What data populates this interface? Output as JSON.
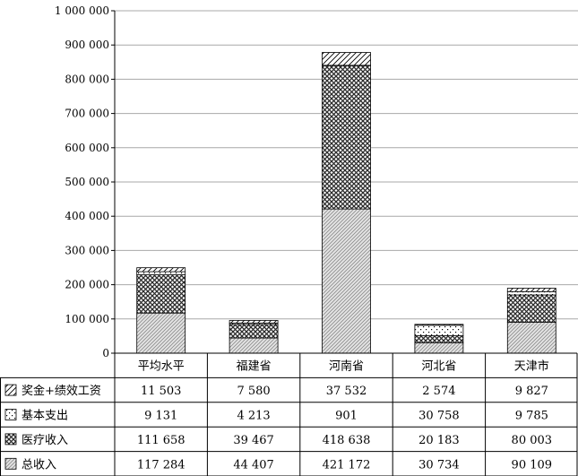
{
  "chart_data": {
    "type": "bar",
    "stacked": true,
    "categories": [
      "平均水平",
      "福建省",
      "河南省",
      "河北省",
      "天津市"
    ],
    "series": [
      {
        "name": "总收入",
        "pattern": "diag-fine",
        "values": [
          117284,
          44407,
          421172,
          30734,
          90109
        ]
      },
      {
        "name": "医疗收入",
        "pattern": "crosshatch",
        "values": [
          111658,
          39467,
          418638,
          20183,
          80003
        ]
      },
      {
        "name": "基本支出",
        "pattern": "dots",
        "values": [
          9131,
          4213,
          901,
          30758,
          9785
        ]
      },
      {
        "name": "奖金+绩效工资",
        "pattern": "diag-coarse",
        "values": [
          11503,
          7580,
          37532,
          2574,
          9827
        ]
      }
    ],
    "table_rows": [
      {
        "series_index": 3,
        "label": "奖金+绩效工资",
        "cells": [
          "11 503",
          "7 580",
          "37 532",
          "2 574",
          "9 827"
        ]
      },
      {
        "series_index": 2,
        "label": "基本支出",
        "cells": [
          "9 131",
          "4 213",
          "901",
          "30 758",
          "9 785"
        ]
      },
      {
        "series_index": 1,
        "label": "医疗收入",
        "cells": [
          "111 658",
          "39 467",
          "418 638",
          "20 183",
          "80 003"
        ]
      },
      {
        "series_index": 0,
        "label": "总收入",
        "cells": [
          "117 284",
          "44 407",
          "421 172",
          "30 734",
          "90 109"
        ]
      }
    ],
    "y_ticks": [
      {
        "value": 0,
        "label": "0"
      },
      {
        "value": 100000,
        "label": "100 000"
      },
      {
        "value": 200000,
        "label": "200 000"
      },
      {
        "value": 300000,
        "label": "300 000"
      },
      {
        "value": 400000,
        "label": "400 000"
      },
      {
        "value": 500000,
        "label": "500 000"
      },
      {
        "value": 600000,
        "label": "600 000"
      },
      {
        "value": 700000,
        "label": "700 000"
      },
      {
        "value": 800000,
        "label": "800 000"
      },
      {
        "value": 900000,
        "label": "900 000"
      },
      {
        "value": 1000000,
        "label": "1 000 000"
      }
    ],
    "ylim": [
      0,
      1000000
    ],
    "grid": true,
    "legend_placement": "data table rows",
    "title": "",
    "xlabel": "",
    "ylabel": ""
  }
}
